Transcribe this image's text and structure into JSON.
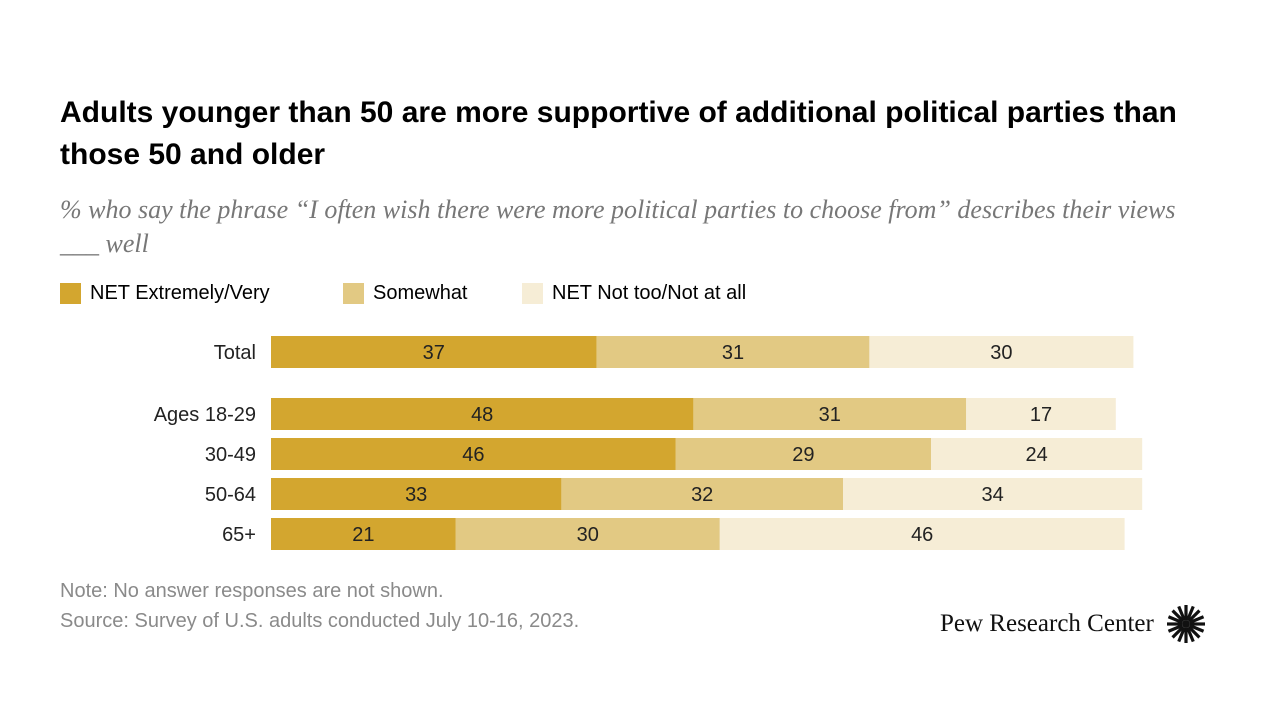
{
  "title": "Adults younger than 50 are more supportive of additional political parties than those 50 and older",
  "subtitle": "% who say the phrase “I often wish there were more political parties to choose from” describes their views ___ well",
  "note": "Note: No answer responses are not shown.",
  "source": "Source: Survey of U.S. adults conducted July 10-16, 2023.",
  "logo": "Pew Research Center",
  "chart_data": {
    "type": "bar",
    "orientation": "horizontal",
    "stacked": true,
    "categories": [
      "Total",
      "Ages 18-29",
      "30-49",
      "50-64",
      "65+"
    ],
    "series": [
      {
        "name": "NET Extremely/Very",
        "color": "#D3A62F",
        "values": [
          37,
          48,
          46,
          33,
          21
        ]
      },
      {
        "name": "Somewhat",
        "color": "#E2C983",
        "values": [
          31,
          31,
          29,
          32,
          30
        ]
      },
      {
        "name": "NET Not too/Not at all",
        "color": "#F6EDD6",
        "values": [
          30,
          17,
          24,
          34,
          46
        ]
      }
    ],
    "xlim": [
      0,
      100
    ],
    "legend": "top-left",
    "grid": false
  }
}
